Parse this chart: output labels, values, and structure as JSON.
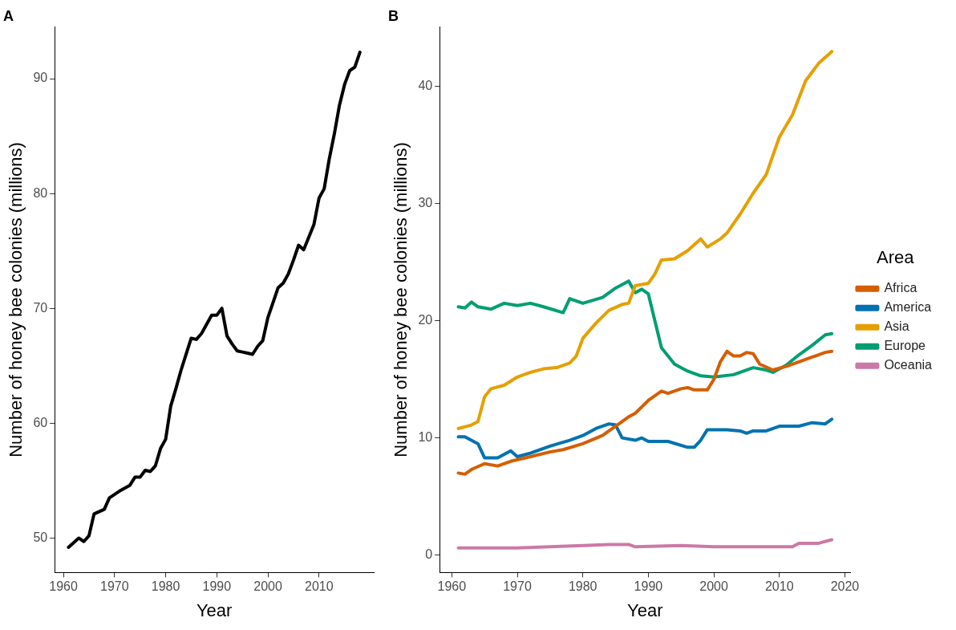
{
  "chart_data": [
    {
      "type": "line",
      "title": "A",
      "xlabel": "Year",
      "ylabel": "Number of honey bee colonies (millions)",
      "x": [
        1961,
        1963,
        1964,
        1965,
        1966,
        1968,
        1969,
        1971,
        1973,
        1974,
        1975,
        1976,
        1977,
        1978,
        1979,
        1980,
        1981,
        1982,
        1983,
        1984,
        1985,
        1986,
        1987,
        1988,
        1989,
        1990,
        1991,
        1992,
        1993,
        1994,
        1995,
        1996,
        1997,
        1998,
        1999,
        2000,
        2001,
        2002,
        2003,
        2004,
        2005,
        2006,
        2007,
        2008,
        2009,
        2010,
        2011,
        2012,
        2013,
        2014,
        2015,
        2016,
        2017,
        2018
      ],
      "values": [
        49.2,
        50.0,
        49.7,
        50.2,
        52.1,
        52.5,
        53.5,
        54.1,
        54.6,
        55.3,
        55.3,
        55.9,
        55.8,
        56.3,
        57.8,
        58.6,
        61.5,
        63.0,
        64.6,
        66.0,
        67.4,
        67.3,
        67.8,
        68.6,
        69.4,
        69.4,
        70.0,
        67.6,
        66.9,
        66.3,
        66.2,
        66.1,
        66.0,
        66.7,
        67.2,
        69.2,
        70.5,
        71.8,
        72.2,
        73.0,
        74.2,
        75.5,
        75.1,
        76.2,
        77.3,
        79.6,
        80.4,
        83.0,
        85.2,
        87.7,
        89.5,
        90.7,
        91.0,
        92.3
      ],
      "color": "#000000",
      "xlim": [
        1958.3,
        2020.7
      ],
      "ylim": [
        47,
        94.5
      ],
      "xticks": [
        1960,
        1970,
        1980,
        1990,
        2000,
        2010
      ],
      "yticks": [
        50,
        60,
        70,
        80,
        90
      ],
      "grid": false,
      "legend": false,
      "marker": "none"
    },
    {
      "type": "line",
      "title": "B",
      "xlabel": "Year",
      "ylabel": "Number of honey bee colonies (millions)",
      "legend_title": "Area",
      "legend": "right",
      "grid": false,
      "marker": "none",
      "xlim": [
        1958.15,
        2020.85
      ],
      "ylim": [
        -1.5,
        45.1
      ],
      "xticks": [
        1960,
        1970,
        1980,
        1990,
        2000,
        2010,
        2020
      ],
      "yticks": [
        0,
        10,
        20,
        30,
        40
      ],
      "series": [
        {
          "name": "Africa",
          "color": "#d55e00",
          "x": [
            1961,
            1962,
            1963,
            1965,
            1967,
            1969,
            1972,
            1975,
            1977,
            1980,
            1983,
            1985,
            1987,
            1988,
            1990,
            1992,
            1993,
            1995,
            1996,
            1997,
            1999,
            2000,
            2001,
            2002,
            2003,
            2004,
            2005,
            2006,
            2007,
            2009,
            2011,
            2013,
            2015,
            2017,
            2018
          ],
          "values": [
            7.0,
            6.9,
            7.3,
            7.8,
            7.6,
            8.0,
            8.4,
            8.8,
            9.0,
            9.5,
            10.2,
            11.0,
            11.8,
            12.1,
            13.2,
            14.0,
            13.8,
            14.2,
            14.3,
            14.1,
            14.1,
            15.0,
            16.5,
            17.4,
            17.0,
            17.0,
            17.3,
            17.2,
            16.3,
            15.8,
            16.1,
            16.5,
            16.9,
            17.3,
            17.4
          ]
        },
        {
          "name": "America",
          "color": "#0072b2",
          "x": [
            1961,
            1962,
            1964,
            1965,
            1967,
            1969,
            1970,
            1972,
            1975,
            1978,
            1980,
            1982,
            1984,
            1985,
            1986,
            1988,
            1989,
            1990,
            1993,
            1996,
            1997,
            1998,
            1999,
            2002,
            2004,
            2005,
            2006,
            2008,
            2010,
            2013,
            2015,
            2017,
            2018
          ],
          "values": [
            10.1,
            10.1,
            9.5,
            8.3,
            8.3,
            8.9,
            8.4,
            8.7,
            9.3,
            9.8,
            10.2,
            10.8,
            11.2,
            11.1,
            10.0,
            9.8,
            10.0,
            9.7,
            9.7,
            9.2,
            9.2,
            9.8,
            10.7,
            10.7,
            10.6,
            10.4,
            10.6,
            10.6,
            11.0,
            11.0,
            11.3,
            11.2,
            11.6
          ]
        },
        {
          "name": "Asia",
          "color": "#e69f00",
          "x": [
            1961,
            1963,
            1964,
            1965,
            1966,
            1968,
            1970,
            1972,
            1974,
            1976,
            1978,
            1979,
            1980,
            1982,
            1984,
            1986,
            1987,
            1988,
            1990,
            1991,
            1992,
            1994,
            1996,
            1998,
            1999,
            2001,
            2002,
            2004,
            2006,
            2008,
            2010,
            2012,
            2014,
            2016,
            2018
          ],
          "values": [
            10.8,
            11.1,
            11.4,
            13.5,
            14.2,
            14.5,
            15.2,
            15.6,
            15.9,
            16.0,
            16.4,
            17.0,
            18.5,
            19.8,
            20.9,
            21.4,
            21.5,
            23.0,
            23.2,
            24.0,
            25.2,
            25.3,
            26.0,
            27.0,
            26.3,
            27.0,
            27.5,
            29.1,
            30.9,
            32.5,
            35.7,
            37.6,
            40.5,
            42.0,
            43.0
          ]
        },
        {
          "name": "Europe",
          "color": "#009e73",
          "x": [
            1961,
            1962,
            1963,
            1964,
            1966,
            1968,
            1970,
            1972,
            1974,
            1977,
            1978,
            1980,
            1983,
            1985,
            1987,
            1988,
            1989,
            1990,
            1991,
            1992,
            1994,
            1996,
            1998,
            2000,
            2003,
            2006,
            2008,
            2009,
            2011,
            2013,
            2015,
            2017,
            2018
          ],
          "values": [
            21.2,
            21.1,
            21.6,
            21.2,
            21.0,
            21.5,
            21.3,
            21.5,
            21.2,
            20.7,
            21.9,
            21.5,
            22.0,
            22.8,
            23.4,
            22.4,
            22.7,
            22.3,
            20.0,
            17.7,
            16.3,
            15.7,
            15.3,
            15.2,
            15.4,
            16.0,
            15.8,
            15.6,
            16.2,
            17.1,
            17.9,
            18.8,
            18.9
          ]
        },
        {
          "name": "Oceania",
          "color": "#cc79a7",
          "x": [
            1961,
            1970,
            1975,
            1980,
            1984,
            1987,
            1988,
            1995,
            2000,
            2005,
            2010,
            2012,
            2013,
            2016,
            2018
          ],
          "values": [
            0.6,
            0.6,
            0.7,
            0.8,
            0.9,
            0.9,
            0.7,
            0.8,
            0.7,
            0.7,
            0.7,
            0.7,
            1.0,
            1.0,
            1.3
          ]
        }
      ]
    }
  ]
}
